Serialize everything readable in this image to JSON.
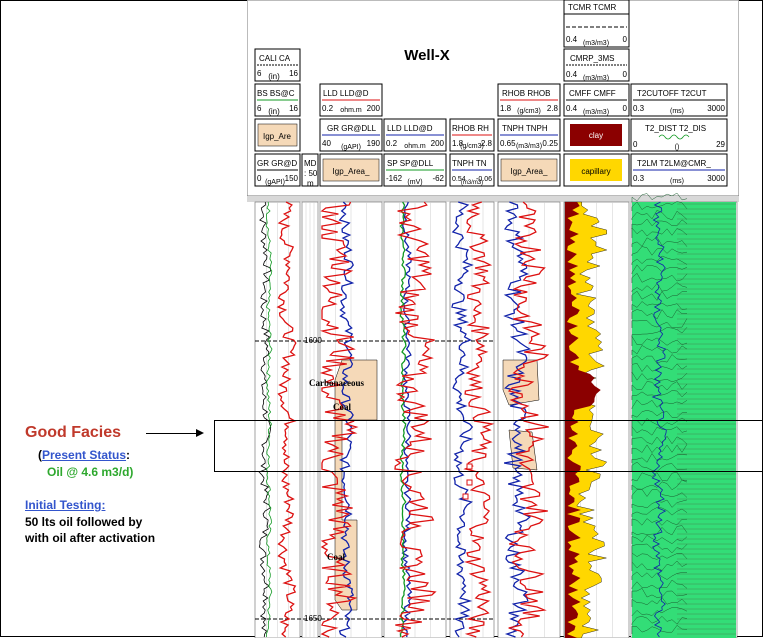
{
  "well_title": "Well-X",
  "header_cells": {
    "cali": {
      "name": "CALI CA",
      "min": "6",
      "unit": "(in)",
      "max": "16"
    },
    "bs": {
      "name": "BS BS@C",
      "min": "6",
      "unit": "(in)",
      "max": "16"
    },
    "igp1": {
      "name": "Igp_Are"
    },
    "gr_left": {
      "name": "GR GR@D",
      "min": "0",
      "unit": "(gAPI)",
      "max": "150"
    },
    "md": {
      "name": "MD",
      "sub1": ": 50",
      "sub2": "m"
    },
    "lld1": {
      "name": "LLD LLD@D",
      "min": "0.2",
      "unit": "ohm.m",
      "max": "200"
    },
    "gr_dll": {
      "name": "GR GR@DLL",
      "min": "40",
      "unit": "(gAPI)",
      "max": "190"
    },
    "igp2": {
      "name": "Igp_Area_"
    },
    "lld2": {
      "name": "LLD LLD@D",
      "min": "0.2",
      "unit": "ohm.m",
      "max": "200"
    },
    "sp": {
      "name": "SP SP@DLL",
      "min": "-162",
      "unit": "(mV)",
      "max": "-62"
    },
    "rhob_small": {
      "name": "RHOB RH",
      "min": "1.8",
      "unit": "(g/cm3)",
      "max": "2.8"
    },
    "tnph_small": {
      "name": "TNPH TN",
      "min": "0.54",
      "unit": "(m3/m3)",
      "max": "-0.06"
    },
    "rhob": {
      "name": "RHOB RHOB",
      "min": "1.8",
      "unit": "(g/cm3)",
      "max": "2.8"
    },
    "tnph": {
      "name": "TNPH TNPH",
      "min": "0.65",
      "unit": "(m3/m3)",
      "max": "0.25"
    },
    "igp3": {
      "name": "Igp_Area_"
    },
    "cmr_t": {
      "name": "TCMR TCMR",
      "min": "0.4",
      "unit": "(m3/m3)",
      "max": "0"
    },
    "cmr_3ms": {
      "name": "CMRP_3MS",
      "min": "0.4",
      "unit": "(m3/m3)",
      "max": "0"
    },
    "cmff": {
      "name": "CMFF CMFF",
      "min": "0.4",
      "unit": "(m3/m3)",
      "max": "0"
    },
    "clay": {
      "name": "clay"
    },
    "capillary": {
      "name": "capillary"
    },
    "t2cutoff": {
      "name": "T2CUTOFF T2CUT",
      "min": "0.3",
      "unit": "(ms)",
      "max": "3000"
    },
    "t2dist": {
      "name": "T2_DIST T2_DIS",
      "min": "0",
      "unit": "()",
      "max": "29"
    },
    "t2lm": {
      "name": "T2LM T2LM@CMR_",
      "min": "0.3",
      "unit": "(ms)",
      "max": "3000"
    }
  },
  "depth_labels": [
    "1600",
    "1650"
  ],
  "lithology_labels": {
    "carbonaceous": "Carbonaceous",
    "coal_upper": "Coal",
    "coal_lower": "Coal"
  },
  "annotations": {
    "good_facies": "Good Facies",
    "status_open": "(",
    "present_status": "Present Status",
    "status_colon": ":",
    "oil_rate": "Oil @ 4.6 m3/d)",
    "initial_testing": "Initial Testing:",
    "result_line1": "50 lts oil followed by",
    "result_line2": "with oil after activation"
  },
  "colors": {
    "coal_fill": "#f5d9b8",
    "clay_fill": "#8b0000",
    "capillary_fill": "#ffd700",
    "t2_fill": "#33dd77",
    "red_curve": "#dd1111",
    "blue_curve": "#1122aa",
    "green_curve": "#119922",
    "title_red": "#c0392b",
    "link_blue": "#3355cc",
    "oil_green": "#2ea82e"
  }
}
